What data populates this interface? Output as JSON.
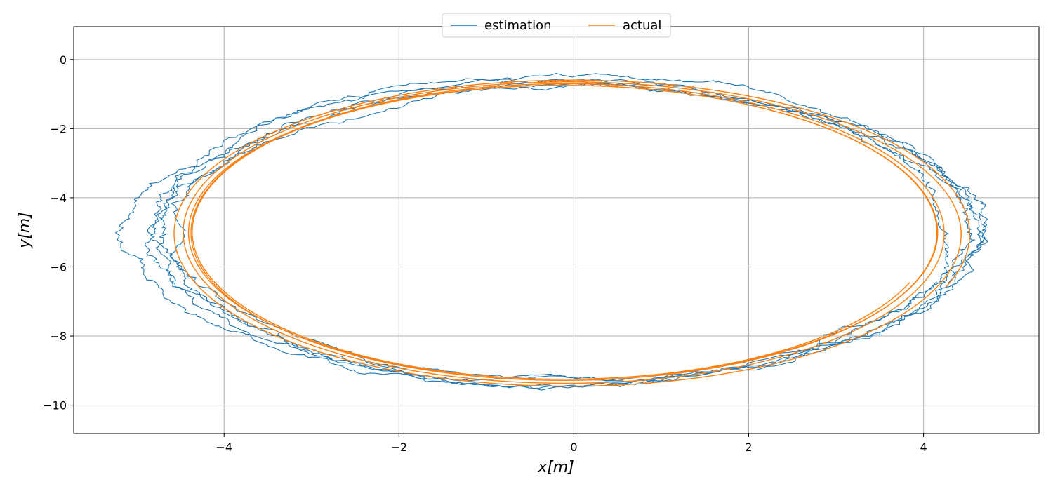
{
  "chart_data": {
    "type": "line",
    "title": "",
    "xlabel": "x[m]",
    "ylabel": "y[m]",
    "xlim": [
      -5.72,
      5.32
    ],
    "ylim": [
      -10.82,
      0.95
    ],
    "xticks": [
      -4,
      -2,
      0,
      2,
      4
    ],
    "yticks": [
      0,
      -2,
      -4,
      -6,
      -8,
      -10
    ],
    "grid": true,
    "legend": {
      "placement": "top-center",
      "entries": [
        "estimation",
        "actual"
      ]
    },
    "series": [
      {
        "name": "estimation",
        "color": "#1f77b4",
        "description_points": {
          "center_x": -0.15,
          "center_y": -5.0,
          "semi_axis_x": 4.65,
          "semi_axis_y": 4.35,
          "start": [
            4.5,
            -8.1
          ],
          "laps": 5
        }
      },
      {
        "name": "actual",
        "color": "#ff7f0e",
        "description_points": {
          "center_x": -0.12,
          "center_y": -5.0,
          "semi_axis_x": 4.45,
          "semi_axis_y": 4.4,
          "start": [
            4.25,
            -7.6
          ],
          "laps": 5
        }
      }
    ]
  }
}
